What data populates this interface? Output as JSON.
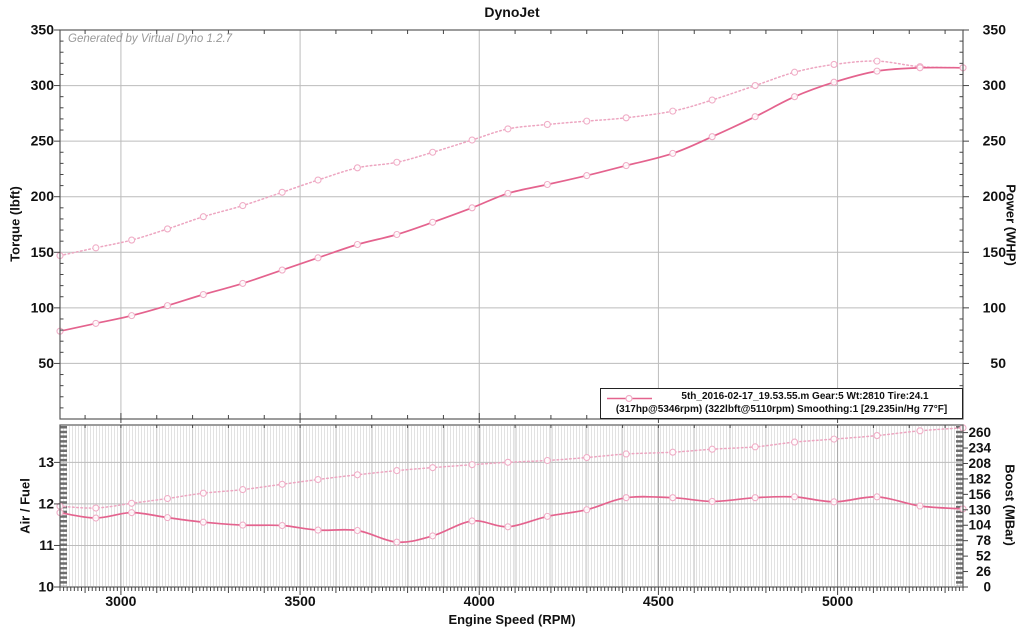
{
  "chart": {
    "title": "DynoJet",
    "watermark": "Generated by Virtual Dyno 1.2.7"
  },
  "legend": {
    "line1": "5th_2016-02-17_19.53.55.m Gear:5 Wt:2810 Tire:24.1",
    "line2": "(317hp@5346rpm) (322lbft@5110rpm) Smoothing:1 [29.235in/Hg 77°F]"
  },
  "colors": {
    "solid_line": "#e4638e",
    "dotted_line": "#eda6c1",
    "marker": "#f0aec7",
    "grid_major": "#bcbcbc",
    "grid_rpm100": "#cfcfcf",
    "grid_minor": "#e2e2e2",
    "axis": "#5a5a5a",
    "tick": "#444444",
    "text": "#111111",
    "edge_bar": "#6e6e6e"
  },
  "chart_data": [
    {
      "type": "line",
      "panel": "top",
      "title": "DynoJet",
      "xlabel": "Engine Speed (RPM)",
      "ylabel_left": "Torque (lbft)",
      "ylabel_right": "Power (WHP)",
      "grid": true,
      "legend_position": "bottom-right",
      "xlim": [
        2830,
        5350
      ],
      "ylim": [
        0,
        350
      ],
      "xticks": [
        3000,
        3500,
        4000,
        4500,
        5000
      ],
      "yticks": [
        50,
        100,
        150,
        200,
        250,
        300,
        350
      ],
      "x": [
        2830,
        2930,
        3030,
        3130,
        3230,
        3340,
        3450,
        3550,
        3660,
        3770,
        3870,
        3980,
        4080,
        4190,
        4300,
        4410,
        4540,
        4650,
        4770,
        4880,
        4990,
        5110,
        5230,
        5350
      ],
      "series": [
        {
          "name": "Torque (lbft)",
          "style": "dotted",
          "axis": "left",
          "values": [
            147,
            154,
            161,
            171,
            182,
            192,
            204,
            215,
            226,
            231,
            240,
            251,
            261,
            265,
            268,
            271,
            277,
            287,
            300,
            312,
            319,
            322,
            317,
            316
          ]
        },
        {
          "name": "Power (WHP)",
          "style": "solid",
          "axis": "left",
          "values": [
            79,
            86,
            93,
            102,
            112,
            122,
            134,
            145,
            157,
            166,
            177,
            190,
            203,
            211,
            219,
            228,
            239,
            254,
            272,
            290,
            303,
            313,
            316,
            316
          ]
        }
      ]
    },
    {
      "type": "line",
      "panel": "bottom",
      "ylabel_left": "Air / Fuel",
      "ylabel_right": "Boost (MBar)",
      "xlim": [
        2830,
        5350
      ],
      "ylim_left": [
        10,
        13.9
      ],
      "ylim_right": [
        0,
        272.8
      ],
      "yticks_left": [
        10,
        11,
        12,
        13
      ],
      "yticks_right": [
        0,
        26,
        52,
        78,
        104,
        130,
        156,
        182,
        208,
        234,
        260
      ],
      "x": [
        2830,
        2930,
        3030,
        3130,
        3230,
        3340,
        3450,
        3550,
        3660,
        3770,
        3870,
        3980,
        4080,
        4190,
        4300,
        4410,
        4540,
        4650,
        4770,
        4880,
        4990,
        5110,
        5230,
        5350
      ],
      "series": [
        {
          "name": "Air / Fuel",
          "style": "solid",
          "axis": "left",
          "values": [
            11.79,
            11.66,
            11.79,
            11.67,
            11.56,
            11.49,
            11.48,
            11.37,
            11.36,
            11.08,
            11.23,
            11.59,
            11.45,
            11.7,
            11.86,
            12.15,
            12.15,
            12.06,
            12.15,
            12.17,
            12.05,
            12.17,
            11.95,
            11.88
          ]
        },
        {
          "name": "Boost",
          "style": "dotted",
          "axis": "right",
          "values": [
            136,
            133,
            141,
            149,
            158,
            164,
            173,
            181,
            189,
            196,
            201,
            206,
            210,
            213,
            218,
            224,
            227,
            232,
            236,
            244,
            249,
            255,
            263,
            268
          ]
        }
      ]
    }
  ]
}
